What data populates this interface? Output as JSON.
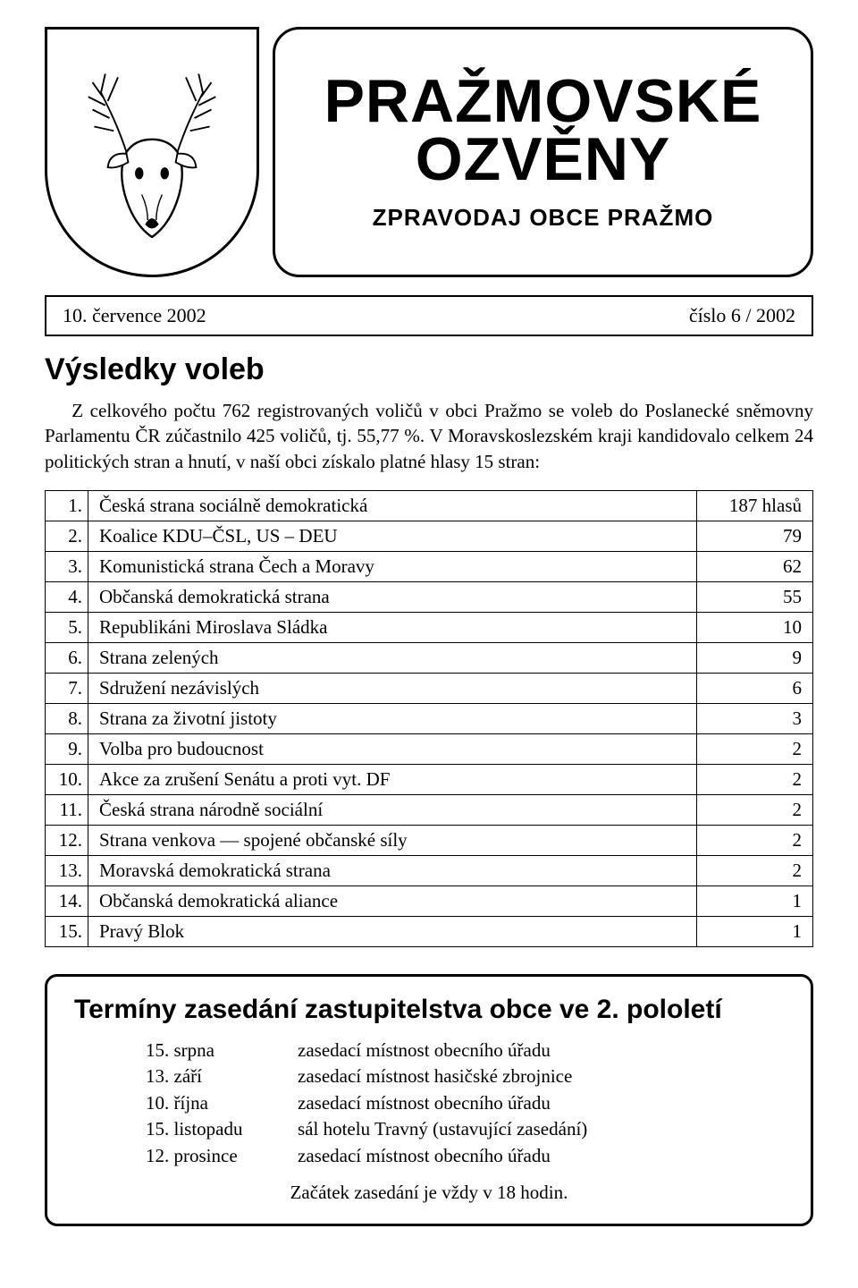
{
  "header": {
    "title_line1": "PRAŽMOVSKÉ",
    "title_line2": "OZVĚNY",
    "subtitle": "ZPRAVODAJ OBCE PRAŽMO"
  },
  "meta": {
    "date": "10. července 2002",
    "issue": "číslo 6 / 2002"
  },
  "article": {
    "title": "Výsledky voleb",
    "intro": "Z celkového počtu 762 registrovaných voličů v obci Pražmo se voleb do Poslanecké sněmovny Parlamentu ČR zúčastnilo 425 voličů, tj. 55,77 %. V Moravskoslezském kraji kandidovalo celkem 24 politických stran a hnutí, v naší obci získalo platné hlasy 15 stran:"
  },
  "results": [
    {
      "n": "1.",
      "name": "Česká strana sociálně demokratická",
      "votes": "187 hlasů"
    },
    {
      "n": "2.",
      "name": "Koalice KDU–ČSL, US – DEU",
      "votes": "79"
    },
    {
      "n": "3.",
      "name": "Komunistická strana Čech a Moravy",
      "votes": "62"
    },
    {
      "n": "4.",
      "name": "Občanská demokratická strana",
      "votes": "55"
    },
    {
      "n": "5.",
      "name": "Republikáni Miroslava Sládka",
      "votes": "10"
    },
    {
      "n": "6.",
      "name": "Strana zelených",
      "votes": "9"
    },
    {
      "n": "7.",
      "name": "Sdružení nezávislých",
      "votes": "6"
    },
    {
      "n": "8.",
      "name": "Strana za životní jistoty",
      "votes": "3"
    },
    {
      "n": "9.",
      "name": "Volba pro budoucnost",
      "votes": "2"
    },
    {
      "n": "10.",
      "name": "Akce za zrušení Senátu a proti vyt. DF",
      "votes": "2"
    },
    {
      "n": "11.",
      "name": "Česká strana národně sociální",
      "votes": "2"
    },
    {
      "n": "12.",
      "name": "Strana venkova — spojené občanské síly",
      "votes": "2"
    },
    {
      "n": "13.",
      "name": "Moravská demokratická strana",
      "votes": "2"
    },
    {
      "n": "14.",
      "name": "Občanská demokratická aliance",
      "votes": "1"
    },
    {
      "n": "15.",
      "name": "Pravý Blok",
      "votes": "1"
    }
  ],
  "footer": {
    "title": "Termíny zasedání zastupitelstva obce ve 2. pololetí",
    "meetings": [
      {
        "date": "15. srpna",
        "place": "zasedací místnost obecního úřadu"
      },
      {
        "date": "13. září",
        "place": "zasedací místnost hasičské zbrojnice"
      },
      {
        "date": "10. října",
        "place": "zasedací místnost obecního úřadu"
      },
      {
        "date": "15. listopadu",
        "place": "sál hotelu Travný (ustavující zasedání)"
      },
      {
        "date": "12. prosince",
        "place": "zasedací místnost obecního úřadu"
      }
    ],
    "note": "Začátek zasedání je vždy v 18 hodin."
  }
}
